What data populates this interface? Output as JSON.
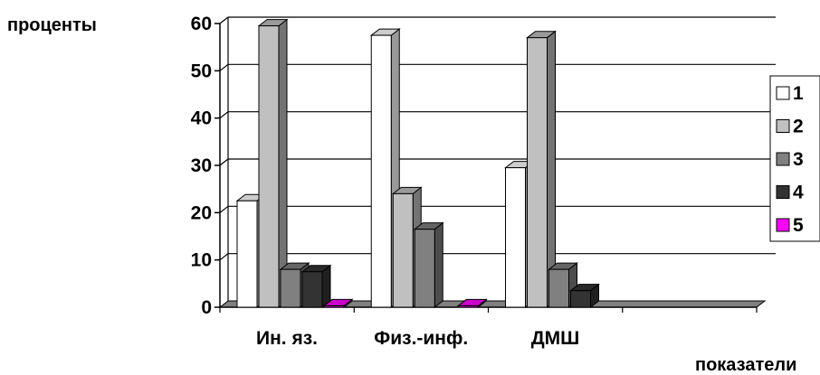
{
  "chart_data": {
    "type": "bar",
    "title": "",
    "ylabel": "проценты",
    "xlabel": "показатели",
    "ylim": [
      0,
      60
    ],
    "yticks": [
      0,
      10,
      20,
      30,
      40,
      50,
      60
    ],
    "grid": true,
    "legend_position": "right",
    "categories": [
      "Ин. яз.",
      "Физ.-инф.",
      "ДМШ",
      ""
    ],
    "series": [
      {
        "name": "1",
        "color": "#ffffff",
        "values": [
          22.5,
          57.5,
          29.5,
          null
        ]
      },
      {
        "name": "2",
        "color": "#c0c0c0",
        "values": [
          59.5,
          24,
          57,
          null
        ]
      },
      {
        "name": "3",
        "color": "#808080",
        "values": [
          8,
          16.5,
          8,
          null
        ]
      },
      {
        "name": "4",
        "color": "#333333",
        "values": [
          7.5,
          null,
          3.5,
          null
        ]
      },
      {
        "name": "5",
        "color": "#ff00ff",
        "values": [
          0.3,
          0.3,
          null,
          null
        ]
      }
    ]
  }
}
